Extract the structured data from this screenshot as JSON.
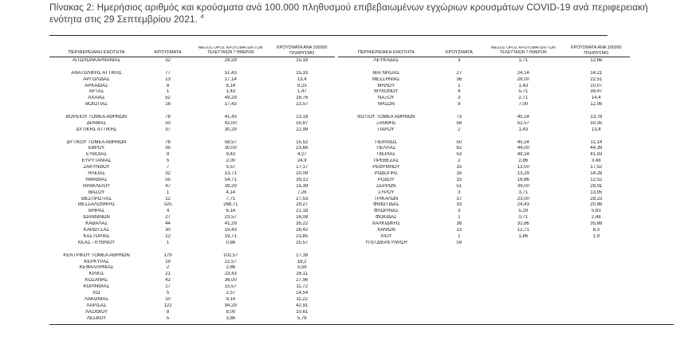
{
  "title": {
    "line1": "Πίνακας 2:  Ημερήσιος αριθμός και κρούσματα ανά 100.000 πληθυσμού επιβεβαιωμένων εγχώριων κρουσμάτων COVID-19 ανά περιφερειακή",
    "line2": "ενότητα στις 29 Σεπτεμβρίου 2021. ",
    "footnote_mark": "4"
  },
  "headers": [
    "ΠΕΡΙΦΕΡΕΙΑΚΗ ΕΝΟΤΗΤΑ",
    "ΚΡΟΥΣΜΑΤΑ",
    "ΜΕΣΟΣ ΟΡΟΣ ΚΡΟΥΣΜΑΤΩΝ ΤΩΝ ΤΕΛΕΥΤΑΙΩΝ 7 ΗΜΕΡΩΝ",
    "ΚΡΟΥΣΜΑΤΑ ΑΝΑ 100000 ΠΛΗΘΥΣΜΟ"
  ],
  "colors": {
    "text_color": "#1c1c1c",
    "title_color": "#3f3f3f",
    "rule_color": "#2a2a2a",
    "bg_color": "#ffffff"
  },
  "tables": {
    "left": {
      "groups": [
        [
          {
            "name": "ΑΙΤΩΛΟΑΚΑΡΝΑΝΙΑΣ",
            "cases": "32",
            "avg7": "29,29",
            "per100k": "15,18"
          }
        ],
        [
          {
            "name": "ΑΝΑΤΟΛΙΚΗΣ ΑΤΤΙΚΗΣ",
            "cases": "77",
            "avg7": "51,43",
            "per100k": "15,33"
          },
          {
            "name": "ΑΡΓΟΛΙΔΑΣ",
            "cases": "13",
            "avg7": "17,14",
            "per100k": "13,4"
          },
          {
            "name": "ΑΡΚΑΔΙΑΣ",
            "cases": "8",
            "avg7": "8,14",
            "per100k": "9,23"
          },
          {
            "name": "ΑΡΤΑΣ",
            "cases": "1",
            "avg7": "1,43",
            "per100k": "1,47"
          },
          {
            "name": "ΑΧΑΪΑΣ",
            "cases": "52",
            "avg7": "49,29",
            "per100k": "16,76"
          },
          {
            "name": "ΒΟΙΩΤΙΑΣ",
            "cases": "16",
            "avg7": "17,43",
            "per100k": "13,57"
          }
        ],
        [
          {
            "name": "ΒΟΡΕΙΟΥ ΤΟΜΕΑ ΑΘΗΝΩΝ",
            "cases": "78",
            "avg7": "41,43",
            "per100k": "13,18"
          },
          {
            "name": "ΔΡΑΜΑΣ",
            "cases": "50",
            "avg7": "42,00",
            "per100k": "50,87"
          },
          {
            "name": "ΔΥΤΙΚΗΣ ΑΤΤΙΚΗΣ",
            "cases": "37",
            "avg7": "30,29",
            "per100k": "22,99"
          }
        ],
        [
          {
            "name": "ΔΥΤΙΚΟΥ ΤΟΜΕΑ ΑΘΗΝΩΝ",
            "cases": "76",
            "avg7": "58,57",
            "per100k": "15,52"
          },
          {
            "name": "ΕΒΡΟΥ",
            "cases": "35",
            "avg7": "30,00",
            "per100k": "23,66"
          },
          {
            "name": "ΕΥΒΟΙΑΣ",
            "cases": "9",
            "avg7": "9,43",
            "per100k": "4,27"
          },
          {
            "name": "ΕΥΡΥΤΑΝΙΑΣ",
            "cases": "5",
            "avg7": "2,00",
            "per100k": "24,9"
          },
          {
            "name": "ΖΑΚΥΝΘΟΥ",
            "cases": "7",
            "avg7": "5,57",
            "per100k": "17,17"
          },
          {
            "name": "ΗΛΕΙΑΣ",
            "cases": "32",
            "avg7": "13,71",
            "per100k": "20,09"
          },
          {
            "name": "ΗΜΑΘΙΑΣ",
            "cases": "55",
            "avg7": "54,71",
            "per100k": "39,12"
          },
          {
            "name": "ΗΡΑΚΛΕΙΟΥ",
            "cases": "47",
            "avg7": "39,29",
            "per100k": "15,39"
          },
          {
            "name": "ΘΑΣΟΥ",
            "cases": "1",
            "avg7": "4,14",
            "per100k": "7,26"
          },
          {
            "name": "ΘΕΣΠΡΩΤΙΑΣ",
            "cases": "12",
            "avg7": "7,71",
            "per100k": "27,53"
          },
          {
            "name": "ΘΕΣΣΑΛΟΝΙΚΗΣ",
            "cases": "325",
            "avg7": "268,71",
            "per100k": "29,27"
          },
          {
            "name": "ΘΗΡΑΣ",
            "cases": "4",
            "avg7": "6,14",
            "per100k": "21,18"
          },
          {
            "name": "ΙΩΑΝΝΙΝΩΝ",
            "cases": "27",
            "avg7": "23,57",
            "per100k": "16,08"
          },
          {
            "name": "ΚΑΒΑΛΑΣ",
            "cases": "44",
            "avg7": "41,29",
            "per100k": "35,22"
          },
          {
            "name": "ΚΑΡΔΙΤΣΑΣ",
            "cases": "30",
            "avg7": "19,43",
            "per100k": "26,42"
          },
          {
            "name": "ΚΑΣΤΟΡΙΑΣ",
            "cases": "12",
            "avg7": "19,71",
            "per100k": "23,85"
          },
          {
            "name": "ΚΕΑΣ - ΚΥΘΝΟΥ",
            "cases": "1",
            "avg7": "0,86",
            "per100k": "25,57"
          }
        ],
        [
          {
            "name": "ΚΕΝΤΡΙΚΟΥ ΤΟΜΕΑ ΑΘΗΝΩΝ",
            "cases": "179",
            "avg7": "102,57",
            "per100k": "17,39"
          },
          {
            "name": "ΚΕΡΚΥΡΑΣ",
            "cases": "19",
            "avg7": "22,57",
            "per100k": "18,2"
          },
          {
            "name": "ΚΕΦΑΛΛΗΝΙΑΣ",
            "cases": "2",
            "avg7": "2,86",
            "per100k": "5,59"
          },
          {
            "name": "ΚΙΛΚΙΣ",
            "cases": "21",
            "avg7": "23,43",
            "per100k": "26,11"
          },
          {
            "name": "ΚΟΖΑΝΗΣ",
            "cases": "42",
            "avg7": "36,00",
            "per100k": "27,96"
          },
          {
            "name": "ΚΟΡΙΝΘΙΑΣ",
            "cases": "17",
            "avg7": "15,57",
            "per100k": "11,72"
          },
          {
            "name": "ΚΩ",
            "cases": "5",
            "avg7": "2,57",
            "per100k": "14,54"
          },
          {
            "name": "ΛΑΚΩΝΙΑΣ",
            "cases": "10",
            "avg7": "9,14",
            "per100k": "11,22"
          },
          {
            "name": "ΛΑΡΙΣΑΣ",
            "cases": "122",
            "avg7": "94,29",
            "per100k": "42,91"
          },
          {
            "name": "ΛΑΣΙΘΙΟΥ",
            "cases": "8",
            "avg7": "8,00",
            "per100k": "10,61"
          },
          {
            "name": "ΛΕΣΒΟΥ",
            "cases": "5",
            "avg7": "3,86",
            "per100k": "5,78"
          }
        ]
      ]
    },
    "right": {
      "groups": [
        [
          {
            "name": "ΛΕΥΚΑΔΑΣ",
            "cases": "3",
            "avg7": "1,71",
            "per100k": "12,66"
          }
        ],
        [
          {
            "name": "ΜΑΓΝΗΣΙΑΣ",
            "cases": "27",
            "avg7": "24,14",
            "per100k": "14,21"
          },
          {
            "name": "ΜΕΣΣΗΝΙΑΣ",
            "cases": "36",
            "avg7": "28,00",
            "per100k": "22,51"
          },
          {
            "name": "ΜΗΛΟΥ",
            "cases": "1",
            "avg7": "1,43",
            "per100k": "10,07"
          },
          {
            "name": "ΜΥΚΟΝΟΥ",
            "cases": "4",
            "avg7": "5,71",
            "per100k": "39,47"
          },
          {
            "name": "ΝΑΞΟΥ",
            "cases": "3",
            "avg7": "2,71",
            "per100k": "14,4"
          },
          {
            "name": "ΝΗΣΩΝ",
            "cases": "9",
            "avg7": "7,00",
            "per100k": "12,06"
          }
        ],
        [
          {
            "name": "ΝΟΤΙΟΥ ΤΟΜΕΑ ΑΘΗΝΩΝ",
            "cases": "73",
            "avg7": "45,14",
            "per100k": "13,78"
          },
          {
            "name": "ΞΑΝΘΗΣ",
            "cases": "56",
            "avg7": "52,57",
            "per100k": "50,35"
          },
          {
            "name": "ΠΑΡΟΥ",
            "cases": "2",
            "avg7": "1,43",
            "per100k": "13,4"
          }
        ],
        [
          {
            "name": "ΠΕΙΡΑΙΩΣ",
            "cases": "50",
            "avg7": "45,14",
            "per100k": "11,14"
          },
          {
            "name": "ΠΕΛΛΑΣ",
            "cases": "62",
            "avg7": "44,00",
            "per100k": "44,39"
          },
          {
            "name": "ΠΙΕΡΙΑΣ",
            "cases": "53",
            "avg7": "49,14",
            "per100k": "41,83"
          },
          {
            "name": "ΠΡΕΒΕΖΑΣ",
            "cases": "2",
            "avg7": "2,86",
            "per100k": "3,48"
          },
          {
            "name": "ΡΕΘΥΜΝΟΥ",
            "cases": "15",
            "avg7": "13,00",
            "per100k": "17,52"
          },
          {
            "name": "ΡΟΔΟΠΗΣ",
            "cases": "16",
            "avg7": "13,29",
            "per100k": "14,28"
          },
          {
            "name": "ΡΟΔΟΥ",
            "cases": "15",
            "avg7": "18,86",
            "per100k": "12,52"
          },
          {
            "name": "ΣΕΡΡΩΝ",
            "cases": "51",
            "avg7": "39,00",
            "per100k": "28,91"
          },
          {
            "name": "ΣΥΡΟΥ",
            "cases": "3",
            "avg7": "3,71",
            "per100k": "13,95"
          },
          {
            "name": "ΤΡΙΚΑΛΩΝ",
            "cases": "37",
            "avg7": "23,00",
            "per100k": "28,23"
          },
          {
            "name": "ΦΘΙΩΤΙΔΑΣ",
            "cases": "33",
            "avg7": "24,43",
            "per100k": "20,86"
          },
          {
            "name": "ΦΛΩΡΙΝΑΣ",
            "cases": "3",
            "avg7": "5,29",
            "per100k": "5,83"
          },
          {
            "name": "ΦΩΚΙΔΑΣ",
            "cases": "1",
            "avg7": "0,71",
            "per100k": "2,48"
          },
          {
            "name": "ΧΑΛΚΙΔΙΚΗΣ",
            "cases": "38",
            "avg7": "32,86",
            "per100k": "35,88"
          },
          {
            "name": "ΧΑΝΙΩΝ",
            "cases": "13",
            "avg7": "12,71",
            "per100k": "8,3"
          },
          {
            "name": "ΧΙΟΥ",
            "cases": "1",
            "avg7": "1,86",
            "per100k": "1,9"
          },
          {
            "name": "ΥΠΟ ΔΙΕΡΕΥΝΗΣΗ",
            "cases": "59",
            "avg7": "",
            "per100k": "",
            "italic": true
          }
        ]
      ]
    }
  }
}
